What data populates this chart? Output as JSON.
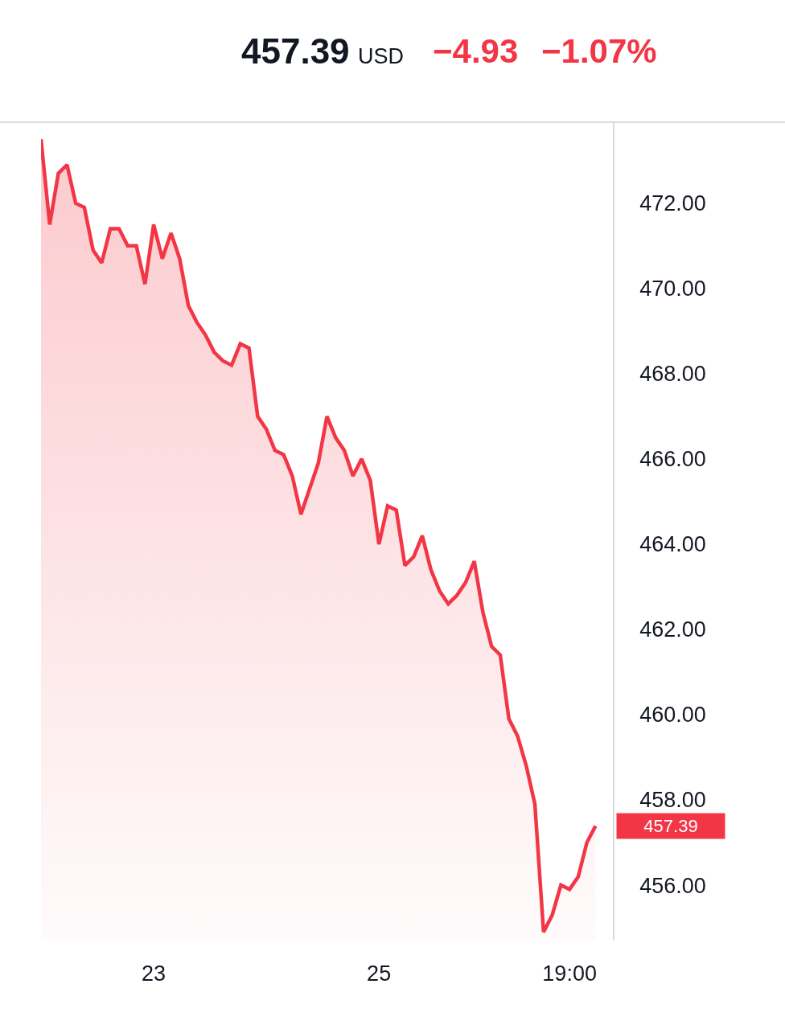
{
  "chart_data": {
    "type": "area",
    "title": "457.39",
    "annotations": [
      "USD",
      "−4.93",
      "−1.07%",
      "457.39"
    ],
    "categories": [
      null,
      null,
      null,
      null,
      null,
      null,
      null,
      null,
      null,
      null,
      null,
      null,
      null,
      "23",
      null,
      null,
      null,
      null,
      null,
      null,
      null,
      null,
      null,
      null,
      null,
      null,
      null,
      null,
      null,
      null,
      null,
      null,
      null,
      null,
      null,
      null,
      null,
      null,
      null,
      "25",
      null,
      null,
      null,
      null,
      null,
      null,
      null,
      null,
      null,
      null,
      null,
      null,
      null,
      null,
      null,
      null,
      null,
      null,
      null,
      null,
      null,
      "19:00",
      null,
      null,
      null
    ],
    "values": [
      473.5,
      471.5,
      472.7,
      472.9,
      472.0,
      471.9,
      470.9,
      470.6,
      471.4,
      471.4,
      471.0,
      471.0,
      470.1,
      471.5,
      470.7,
      471.3,
      470.7,
      469.6,
      469.2,
      468.9,
      468.5,
      468.3,
      468.2,
      468.7,
      468.6,
      467.0,
      466.7,
      466.2,
      466.1,
      465.6,
      464.7,
      465.3,
      465.9,
      467.0,
      466.5,
      466.2,
      465.6,
      466.0,
      465.5,
      464.0,
      464.9,
      464.8,
      463.5,
      463.7,
      464.2,
      463.4,
      462.9,
      462.6,
      462.8,
      463.1,
      463.6,
      462.4,
      461.6,
      461.4,
      459.9,
      459.5,
      458.8,
      457.9,
      454.9,
      455.3,
      456.0,
      455.9,
      456.2,
      457.0,
      457.39
    ],
    "color": "#f23645",
    "ylim": [
      454.7,
      473.9
    ],
    "yticks": [
      {
        "value": 456,
        "label": "456.00"
      },
      {
        "value": 458,
        "label": "458.00"
      },
      {
        "value": 460,
        "label": "460.00"
      },
      {
        "value": 462,
        "label": "462.00"
      },
      {
        "value": 464,
        "label": "464.00"
      },
      {
        "value": 466,
        "label": "466.00"
      },
      {
        "value": 468,
        "label": "468.00"
      },
      {
        "value": 470,
        "label": "470.00"
      },
      {
        "value": 472,
        "label": "472.00"
      }
    ]
  }
}
